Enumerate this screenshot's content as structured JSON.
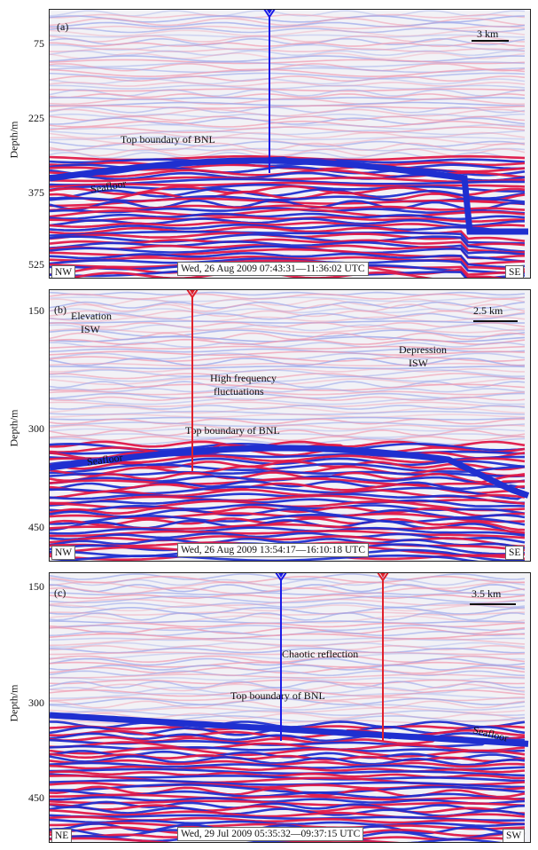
{
  "axis": {
    "ylabel": "Depth/m"
  },
  "panels": [
    {
      "id": "a",
      "letter": "(a)",
      "ticks": [
        "75",
        "225",
        "375",
        "525"
      ],
      "scale": "3  km",
      "annotations": {
        "top_boundary": "Top boundary of BNL",
        "seafloor": "Seafloor"
      },
      "left_dir": "NW",
      "right_dir": "SE",
      "timestamp": "Wed, 26 Aug 2009 07:43:31—11:36:02 UTC",
      "marker_color": "#1a1ae6"
    },
    {
      "id": "b",
      "letter": "(b)",
      "ticks": [
        "150",
        "300",
        "450"
      ],
      "scale": "2.5 km",
      "annotations": {
        "elevation_1": "Elevation",
        "elevation_2": "ISW",
        "depression_1": "Depression",
        "depression_2": "ISW",
        "highfreq_1": "High frequency",
        "highfreq_2": "fluctuations",
        "top_boundary": "Top boundary of BNL",
        "seafloor": "Seafloor"
      },
      "left_dir": "NW",
      "right_dir": "SE",
      "timestamp": "Wed, 26 Aug 2009 13:54:17—16:10:18 UTC",
      "marker_color": "#e0202a"
    },
    {
      "id": "c",
      "letter": "(c)",
      "ticks": [
        "150",
        "300",
        "450"
      ],
      "scale": "3.5 km",
      "annotations": {
        "chaotic": "Chaotic reflection",
        "top_boundary": "Top boundary of BNL",
        "seafloor": "Seafloor"
      },
      "left_dir": "NE",
      "right_dir": "SW",
      "timestamp": "Wed, 29 Jul 2009 05:35:32—09:37:15 UTC",
      "marker_colors": [
        "#1a1ae6",
        "#e0202a"
      ]
    }
  ],
  "colors": {
    "blue": "#1f2fd0",
    "red": "#e01848",
    "pale_blue": "#9aa6ea",
    "pale_red": "#f09ab0",
    "background": "#f2f2f6"
  }
}
